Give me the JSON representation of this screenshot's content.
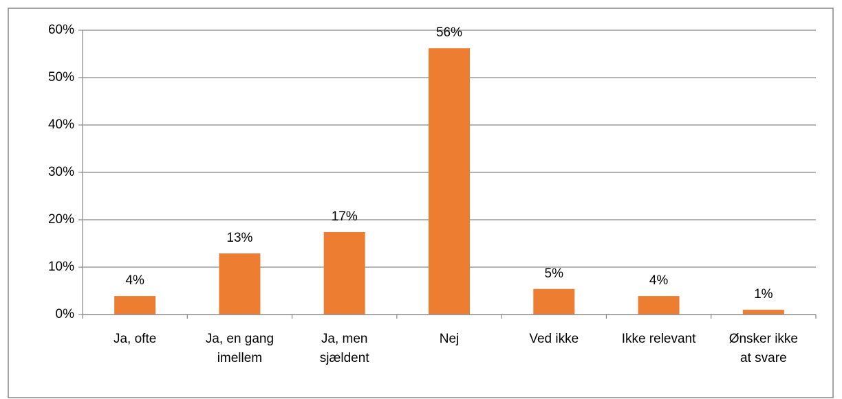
{
  "chart_data": {
    "type": "bar",
    "categories": [
      "Ja, ofte",
      "Ja, en gang imellem",
      "Ja, men sjældent",
      "Nej",
      "Ved ikke",
      "Ikke relevant",
      "Ønsker ikke at svare"
    ],
    "values": [
      3.9,
      12.9,
      17.4,
      56.2,
      5.4,
      3.9,
      1.0
    ],
    "value_labels": [
      "4%",
      "13%",
      "17%",
      "56%",
      "5%",
      "4%",
      "1%"
    ],
    "color": "#ed7d31",
    "ylim": [
      0,
      60
    ],
    "yticks": [
      {
        "value": 0,
        "label": "0%"
      },
      {
        "value": 10,
        "label": "10%"
      },
      {
        "value": 20,
        "label": "20%"
      },
      {
        "value": 30,
        "label": "30%"
      },
      {
        "value": 40,
        "label": "40%"
      },
      {
        "value": 50,
        "label": "50%"
      },
      {
        "value": 60,
        "label": "60%"
      }
    ],
    "grid": true
  }
}
